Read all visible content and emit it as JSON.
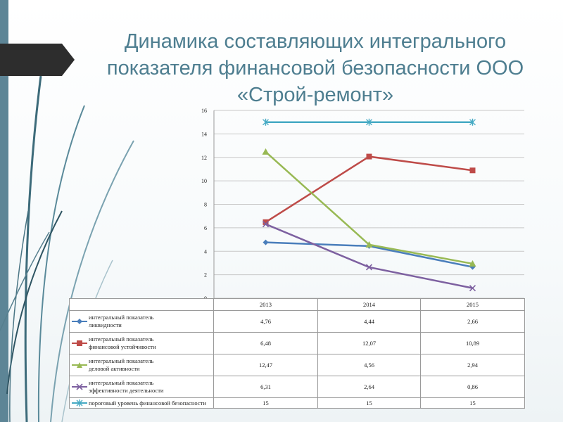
{
  "slide": {
    "title": "Динамика составляющих интегрального показателя финансовой безопасности  ООО «Строй-ремонт»"
  },
  "chart_data": {
    "type": "line",
    "categories": [
      "2013",
      "2014",
      "2015"
    ],
    "ylim": [
      0,
      16
    ],
    "yticks": [
      0,
      2,
      4,
      6,
      8,
      10,
      12,
      14,
      16
    ],
    "grid": true,
    "legend": "data table below chart",
    "series": [
      {
        "name": "интегральный показатель ликвидности",
        "label_lines": [
          "интегральный показатель",
          "ликвидности"
        ],
        "values": [
          4.76,
          4.44,
          2.66
        ],
        "value_labels": [
          "4,76",
          "4,44",
          "2,66"
        ],
        "color": "#4a7ebb",
        "marker": "diamond"
      },
      {
        "name": "интегральный показатель финансовой устойчивости",
        "label_lines": [
          "интегральный показатель",
          "финансовой устойчивости"
        ],
        "values": [
          6.48,
          12.07,
          10.89
        ],
        "value_labels": [
          "6,48",
          "12,07",
          "10,89"
        ],
        "color": "#be4b48",
        "marker": "square"
      },
      {
        "name": "интегральный показатель деловой активности",
        "label_lines": [
          "интегральный показатель",
          "деловой активности"
        ],
        "values": [
          12.47,
          4.56,
          2.94
        ],
        "value_labels": [
          "12,47",
          "4,56",
          "2,94"
        ],
        "color": "#98b954",
        "marker": "triangle"
      },
      {
        "name": "интегральный показатель эффективности деятельности",
        "label_lines": [
          "интегральный показатель",
          "эффективности деятельности"
        ],
        "values": [
          6.31,
          2.64,
          0.86
        ],
        "value_labels": [
          "6,31",
          "2,64",
          "0,86"
        ],
        "color": "#7d60a0",
        "marker": "x"
      },
      {
        "name": "пороговый уровень финансовой безопасности",
        "label_lines": [
          "пороговый уровень финансовой безопасности"
        ],
        "values": [
          15,
          15,
          15
        ],
        "value_labels": [
          "15",
          "15",
          "15"
        ],
        "color": "#46aac4",
        "marker": "star"
      }
    ]
  }
}
